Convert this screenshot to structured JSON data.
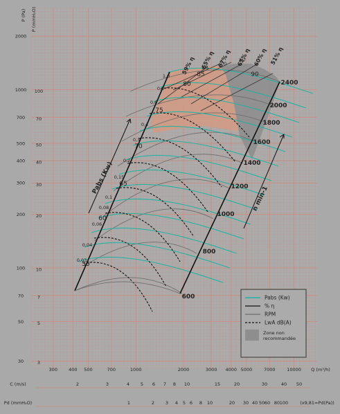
{
  "chart_data": {
    "type": "line",
    "title": "",
    "x_axis": {
      "label": "Q (m³/h)",
      "scale": "log",
      "range": [
        220,
        14000
      ],
      "ticks": [
        300,
        400,
        500,
        700,
        1000,
        2000,
        3000,
        4000,
        5000,
        7000,
        10000
      ],
      "tick_labels": [
        "300",
        "400",
        "500",
        "700",
        "1000",
        "2000",
        "3000",
        "4000",
        "5000",
        "7000",
        "10000"
      ]
    },
    "y_axis_pa": {
      "label": "P (Pa)",
      "scale": "log",
      "ticks": [
        30,
        50,
        70,
        100,
        200,
        300,
        400,
        500,
        700,
        1000,
        2000
      ],
      "tick_labels": [
        "30",
        "50",
        "70",
        "100",
        "200",
        "300",
        "400",
        "500",
        "700",
        "1000",
        "2000"
      ]
    },
    "y_axis_mmh2o": {
      "label": "P (mmH₂O)",
      "ticks": [
        3,
        5,
        7,
        10,
        20,
        30,
        40,
        50,
        70,
        100
      ],
      "tick_labels": [
        "3",
        "5",
        "7",
        "10",
        "20",
        "30",
        "40",
        "50",
        "70",
        "100"
      ]
    },
    "scale_c": {
      "label": "C (m/s)",
      "ticks": [
        2,
        3,
        4,
        5,
        6,
        7,
        8,
        10,
        15,
        20,
        30,
        40,
        50
      ],
      "tick_labels": [
        "2",
        "3",
        "4",
        "5",
        "6",
        "7",
        "8",
        "10",
        "15",
        "20",
        "30",
        "40",
        "50"
      ]
    },
    "scale_pd": {
      "label": "Pd (mmH₂O)",
      "suffix": "(x9,81=Pd(Pa))",
      "ticks": [
        1,
        2,
        3,
        4,
        5,
        6,
        8,
        10,
        20,
        30,
        40,
        50,
        60,
        80,
        100
      ],
      "tick_labels": [
        "1",
        "2",
        "3",
        "4",
        "5",
        "6",
        "8",
        "10",
        "20",
        "30",
        "40",
        "50",
        "60",
        "80",
        "100"
      ]
    },
    "rpm_lines": [
      600,
      800,
      1000,
      1200,
      1400,
      1600,
      1800,
      2000,
      2400
    ],
    "rpm_axis_label": "n min-1",
    "power_axis_label": "Pabs (Kw)",
    "power_values": [
      "0,03",
      "0,04",
      "0,06",
      "0,08",
      "0,1",
      "0,15",
      "0,2",
      "0,3",
      "0,4",
      "0,6",
      "0,8",
      "1,0",
      "1,5",
      "2,0",
      "2,7"
    ],
    "noise_values": [
      "55",
      "60",
      "65",
      "70",
      "75",
      "80",
      "85",
      "90"
    ],
    "efficiency_labels": [
      "59% η",
      "65% η",
      "67% η",
      "65% η",
      "60% η",
      "51% η"
    ],
    "legend": {
      "position": "bottom-right",
      "items": [
        {
          "label": "Pabs (Kw)",
          "style": "solid-teal"
        },
        {
          "label": "% η",
          "style": "solid-black"
        },
        {
          "label": "RPM",
          "style": "solid-grey"
        },
        {
          "label": "LwA dB(A)",
          "style": "dashed"
        },
        {
          "label": "Zone non recommandée",
          "style": "swatch"
        }
      ]
    },
    "grid": true,
    "colors": {
      "background": "#a9a9a9",
      "grid": "#c98e83",
      "power_curves": "#1fb3a3",
      "rpm_curves": "#6e6e6e",
      "salmon_zone": "#d29a82",
      "not_recommended_zone": "#8e8e8e",
      "legend_bg": "#ababab"
    }
  }
}
